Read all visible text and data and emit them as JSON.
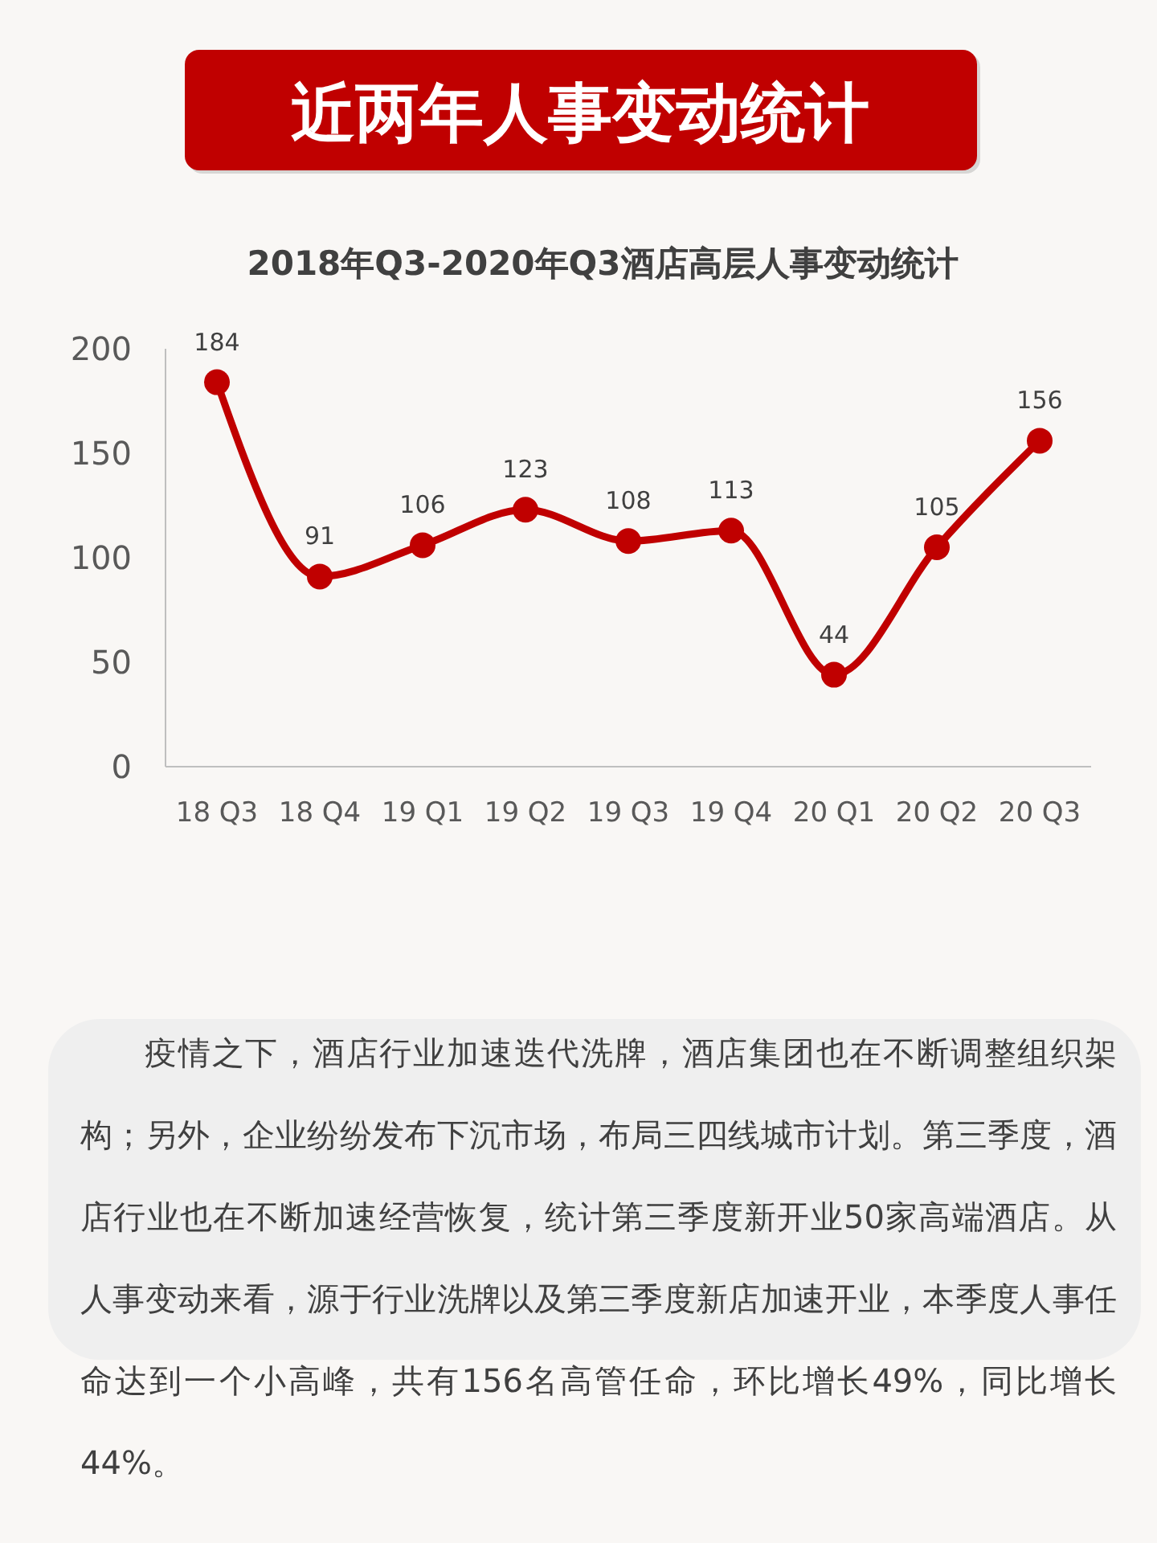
{
  "chart_data": {
    "type": "line",
    "title": "近两年人事变动统计",
    "subtitle": "2018年Q3-2020年Q3酒店高层人事变动统计",
    "categories": [
      "18 Q3",
      "18 Q4",
      "19 Q1",
      "19 Q2",
      "19 Q3",
      "19 Q4",
      "20 Q1",
      "20 Q2",
      "20 Q3"
    ],
    "series": [
      {
        "color": "#c00000",
        "values": [
          184,
          91,
          106,
          123,
          108,
          113,
          44,
          105,
          156
        ]
      }
    ],
    "ylim": [
      0,
      200
    ],
    "yticks": [
      0,
      50,
      100,
      150,
      200
    ],
    "marker": "circle",
    "line_style": "solid",
    "data_labels": true,
    "annotations": [
      "疫情之下，酒店行业加速迭代洗牌，酒店集团也在不断调整组织架构；另外，企业纷纷发布下沉市场，布局三四线城市计划。第三季度，酒店行业也在不断加速经营恢复，统计第三季度新开业50家高端酒店。从人事变动来看，源于行业洗牌以及第三季度新店加速开业，本季度人事任命达到一个小高峰，共有156名高管任命，环比增长49%，同比增长44%。"
    ]
  }
}
